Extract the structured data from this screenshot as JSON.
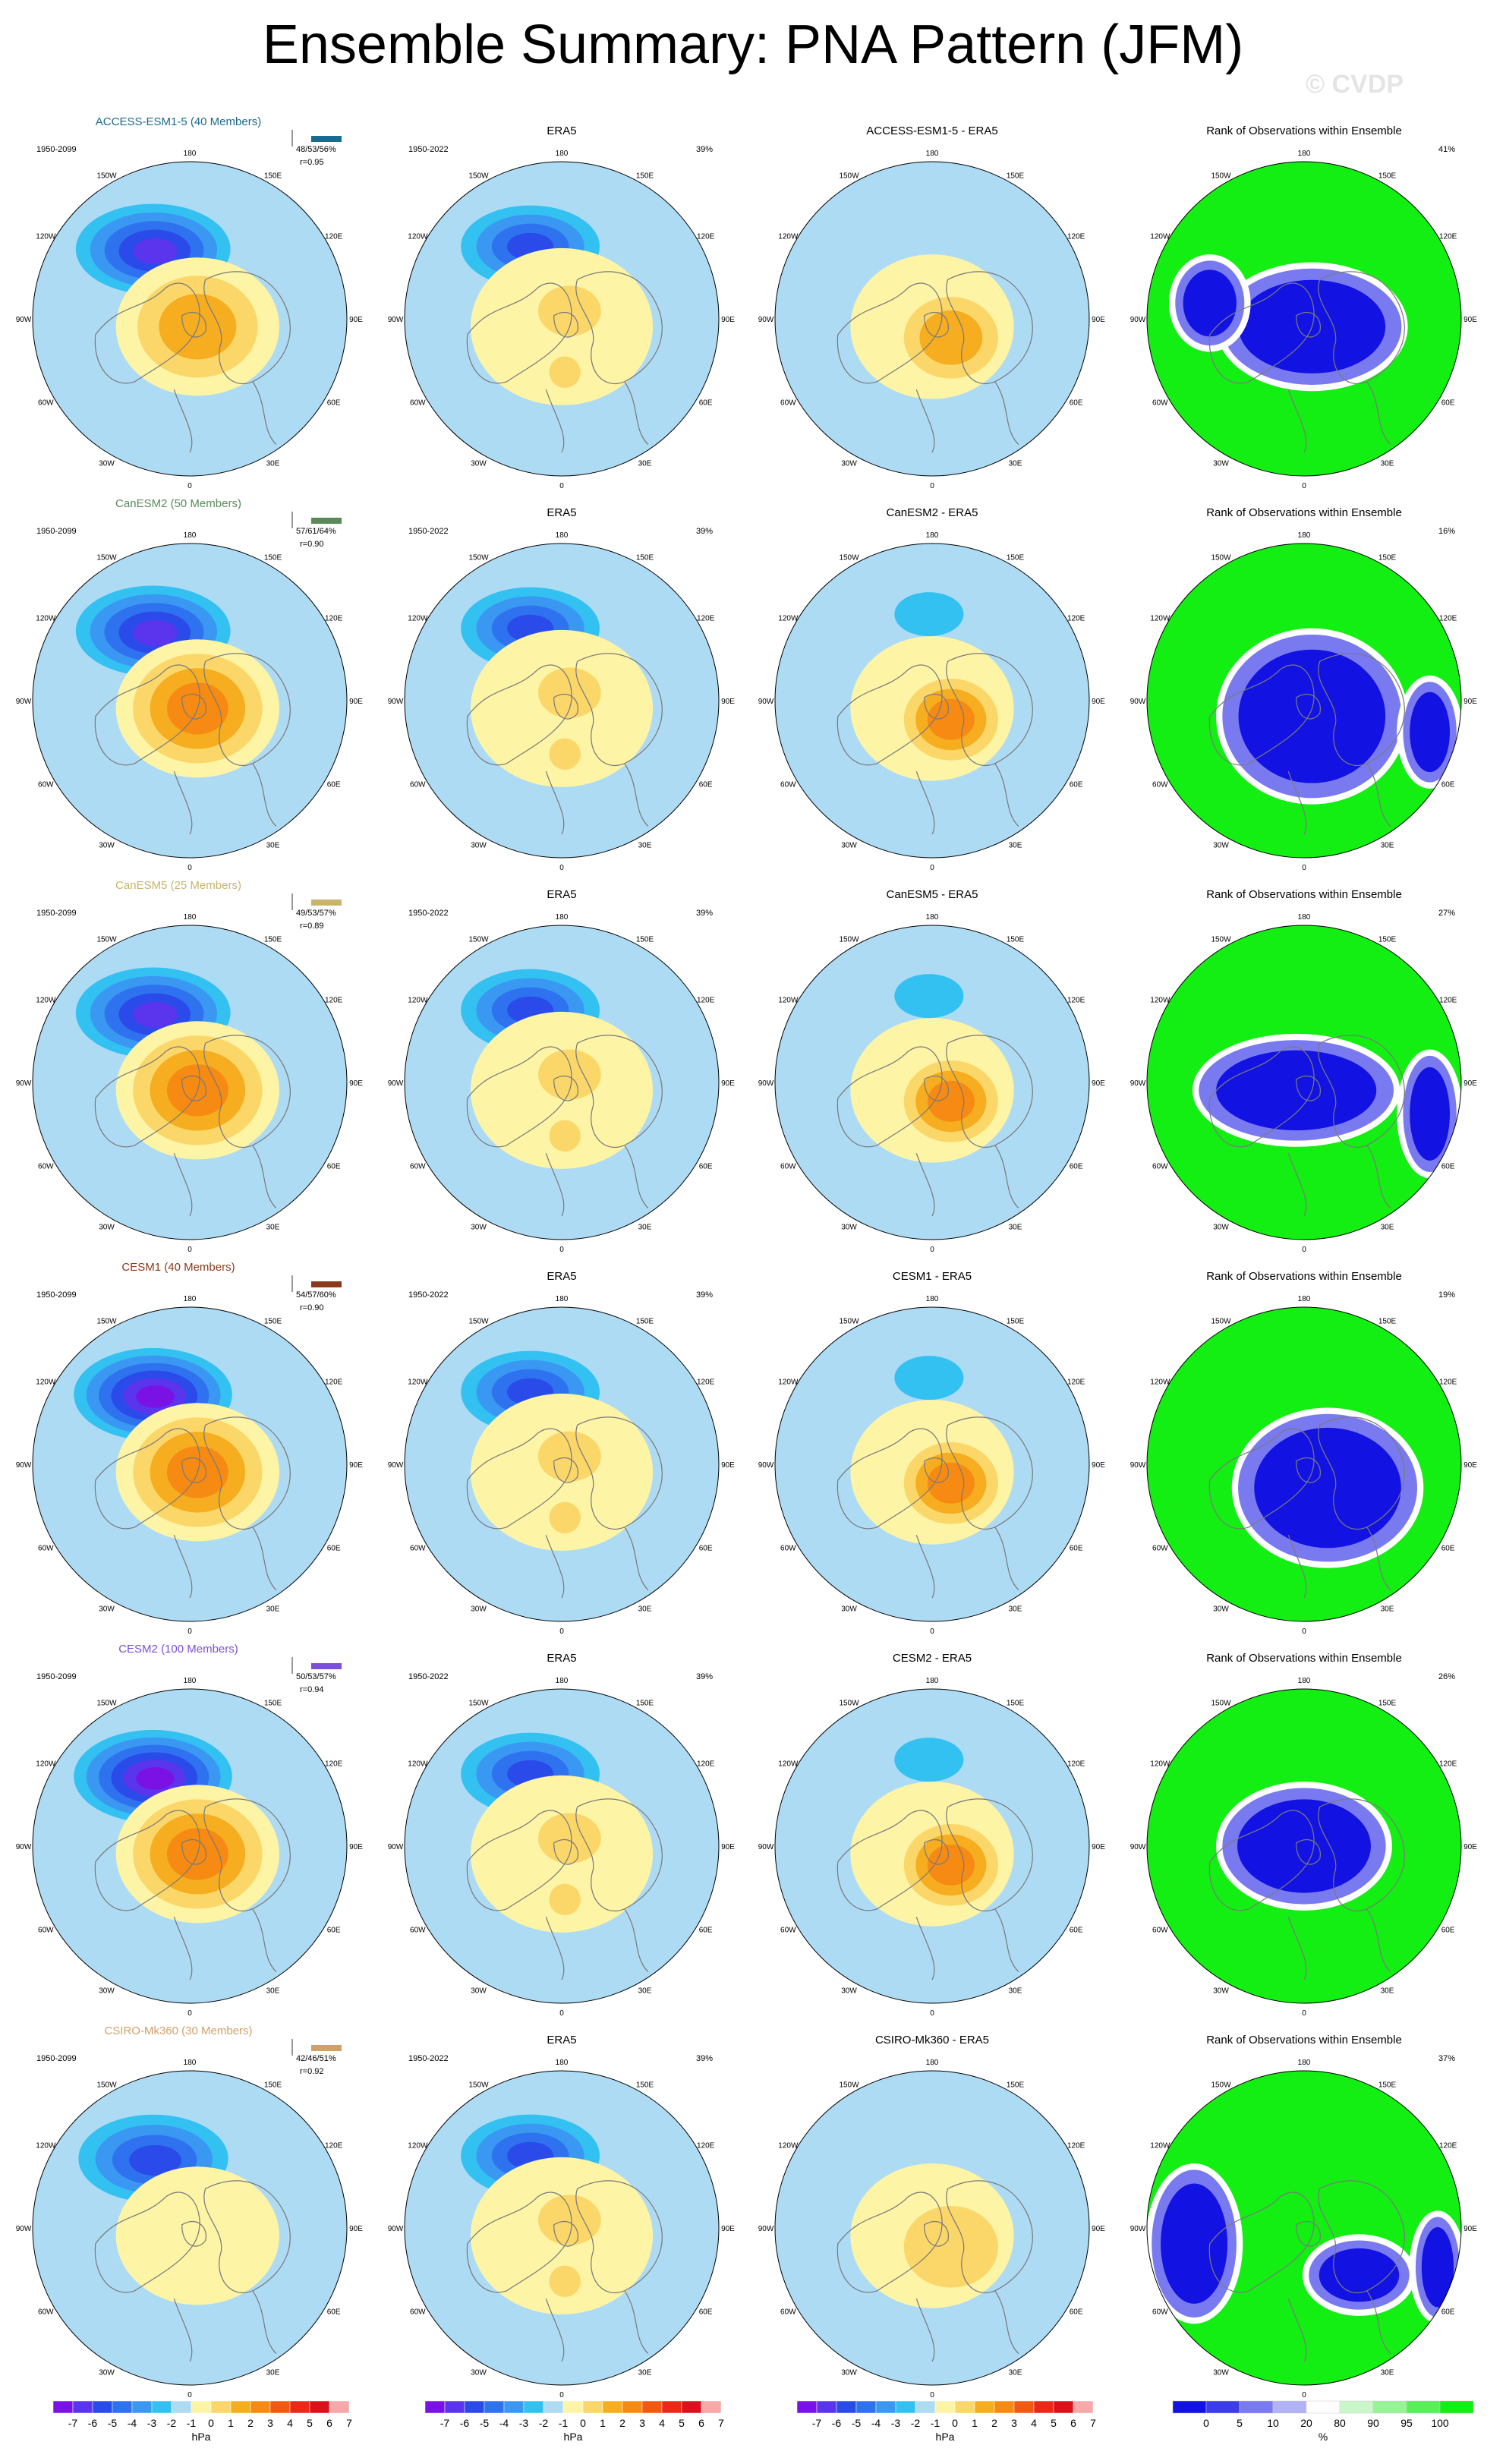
{
  "title": "Ensemble Summary: PNA Pattern (JFM)",
  "watermark": "© CVDP",
  "lon_labels": [
    "180",
    "150E",
    "120E",
    "90E",
    "60E",
    "30E",
    "0",
    "30W",
    "60W",
    "90W",
    "120W",
    "150W"
  ],
  "colors": {
    "anomaly_scale": [
      "#7a12e6",
      "#5b35ee",
      "#2a4ae9",
      "#2f72ef",
      "#3a98f2",
      "#33c1f2",
      "#aedbf4",
      "#fdf4a6",
      "#fbd76a",
      "#f6ad1f",
      "#f68a12",
      "#f25a12",
      "#e92a19",
      "#d9121b",
      "#f7a9a9"
    ],
    "rank_scale": [
      "#1212e3",
      "#3d3de8",
      "#7a7af0",
      "#b2b2f6",
      "#ffffff",
      "#c9f7c9",
      "#96f496",
      "#57f057",
      "#13ee13"
    ]
  },
  "colorbars": {
    "anomaly": {
      "ticks": [
        "-7",
        "-6",
        "-5",
        "-4",
        "-3",
        "-2",
        "-1",
        "0",
        "1",
        "2",
        "3",
        "4",
        "5",
        "6",
        "7"
      ],
      "unit": "hPa"
    },
    "rank": {
      "ticks": [
        "0",
        "5",
        "10",
        "20",
        "80",
        "90",
        "95",
        "100"
      ],
      "unit": "%"
    }
  },
  "chart_data": {
    "type": "heatmap",
    "projection": "north-polar-stereographic",
    "variable": "PNA pattern sea level pressure anomaly",
    "units": "hPa",
    "contour_levels": [
      -7,
      -6,
      -5,
      -4,
      -3,
      -2,
      -1,
      0,
      1,
      2,
      3,
      4,
      5,
      6,
      7
    ],
    "column_titles": [
      "",
      "ERA5",
      "",
      "Rank of Observations within Ensemble"
    ],
    "rows": [
      {
        "model": "ACCESS-ESM1-5",
        "members": "ACCESS-ESM1-5 (40 Members)",
        "model_period": "1950-2099",
        "obs_period": "1950-2022",
        "pct": "48/53/56%",
        "r": "r=0.95",
        "obs_pct": "39%",
        "rank_pct": "41%",
        "diff_title": "ACCESS-ESM1-5 - ERA5",
        "color": "#1b6a8f",
        "model_low": -6.0,
        "model_high": 3.0,
        "diff_high": 1.5,
        "rank_kind": 0
      },
      {
        "model": "CanESM2",
        "members": "CanESM2 (50 Members)",
        "model_period": "1950-2099",
        "obs_period": "1950-2022",
        "pct": "57/61/64%",
        "r": "r=0.90",
        "obs_pct": "39%",
        "rank_pct": "16%",
        "diff_title": "CanESM2 - ERA5",
        "color": "#5a8a5a",
        "model_low": -6.0,
        "model_high": 3.5,
        "diff_high": 2.5,
        "rank_kind": 1
      },
      {
        "model": "CanESM5",
        "members": "CanESM5 (25 Members)",
        "model_period": "1950-2099",
        "obs_period": "1950-2022",
        "pct": "49/53/57%",
        "r": "r=0.89",
        "obs_pct": "39%",
        "rank_pct": "27%",
        "diff_title": "CanESM5 - ERA5",
        "color": "#c8b46a",
        "model_low": -6.0,
        "model_high": 4.0,
        "diff_high": 3.0,
        "rank_kind": 2
      },
      {
        "model": "CESM1",
        "members": "CESM1 (40 Members)",
        "model_period": "1950-2099",
        "obs_period": "1950-2022",
        "pct": "54/57/60%",
        "r": "r=0.90",
        "obs_pct": "39%",
        "rank_pct": "19%",
        "diff_title": "CESM1 - ERA5",
        "color": "#8a3a1a",
        "model_low": -7.0,
        "model_high": 3.5,
        "diff_high": 2.5,
        "rank_kind": 3
      },
      {
        "model": "CESM2",
        "members": "CESM2 (100 Members)",
        "model_period": "1950-2099",
        "obs_period": "1950-2022",
        "pct": "50/53/57%",
        "r": "r=0.94",
        "obs_pct": "39%",
        "rank_pct": "26%",
        "diff_title": "CESM2 - ERA5",
        "color": "#7b4fd6",
        "model_low": -7.0,
        "model_high": 4.0,
        "diff_high": 2.5,
        "rank_kind": 4
      },
      {
        "model": "CSIRO-Mk360",
        "members": "CSIRO-Mk360 (30 Members)",
        "model_period": "1950-2099",
        "obs_period": "1950-2022",
        "pct": "42/46/51%",
        "r": "r=0.92",
        "obs_pct": "39%",
        "rank_pct": "37%",
        "diff_title": "CSIRO-Mk360 - ERA5",
        "color": "#d2a06a",
        "model_low": -5.0,
        "model_high": 1.0,
        "diff_high": 1.0,
        "rank_kind": 5
      }
    ],
    "era5": {
      "low": -5.0,
      "high": 2.0
    }
  }
}
